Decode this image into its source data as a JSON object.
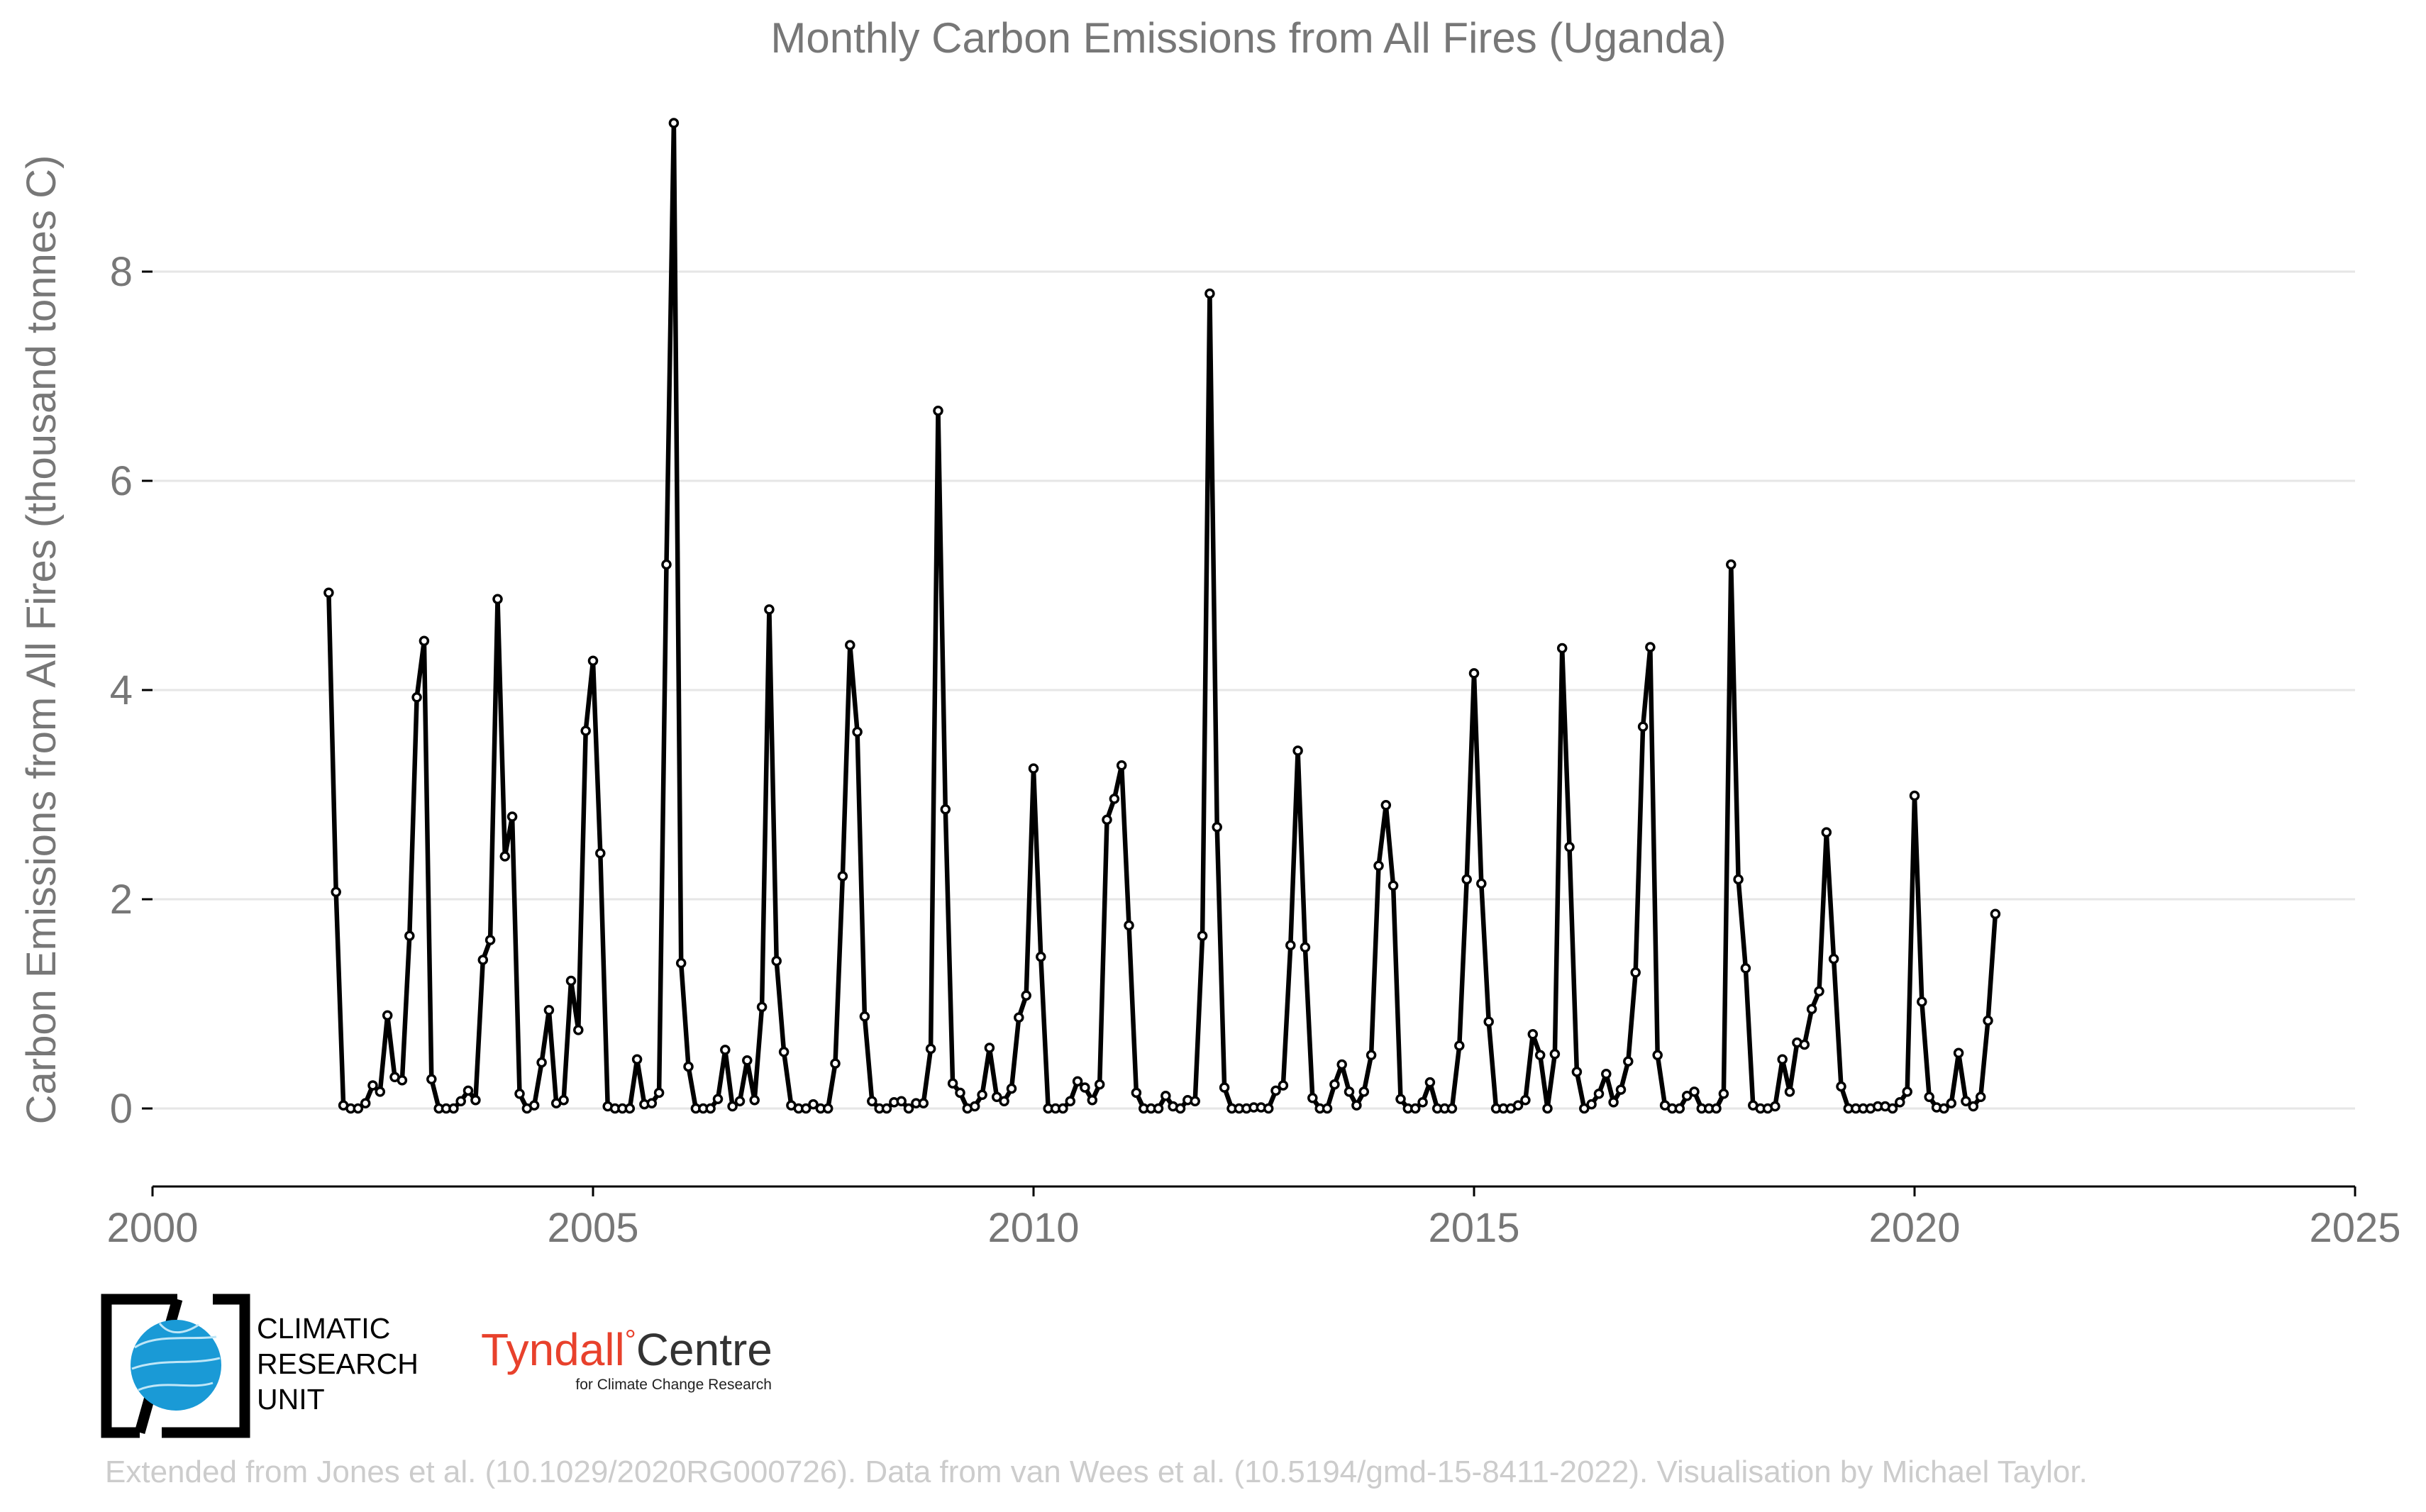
{
  "chart_data": {
    "type": "line",
    "title": "Monthly Carbon Emissions from All Fires (Uganda)",
    "xlabel": "",
    "ylabel": "Carbon Emissions from All Fires (thousand tonnes C)",
    "xlim": [
      2000,
      2025
    ],
    "ylim": [
      -0.75,
      9.7
    ],
    "x_ticks": [
      2000,
      2005,
      2010,
      2015,
      2020,
      2025
    ],
    "y_ticks": [
      0,
      2,
      4,
      6,
      8
    ],
    "grid": "horizontal",
    "legend": "none",
    "x_start": "2002-01",
    "x_step": "1 month",
    "series": [
      {
        "color": "#000000",
        "marker": "open-circle",
        "values": [
          4.93,
          2.07,
          0.03,
          0.0,
          0.0,
          0.05,
          0.22,
          0.16,
          0.89,
          0.3,
          0.27,
          1.65,
          3.93,
          4.47,
          0.28,
          0.0,
          0.0,
          0.0,
          0.07,
          0.17,
          0.08,
          1.42,
          1.61,
          4.87,
          2.41,
          2.79,
          0.14,
          0.0,
          0.03,
          0.44,
          0.94,
          0.05,
          0.08,
          1.22,
          0.75,
          3.61,
          4.28,
          2.44,
          0.02,
          0.0,
          0.0,
          0.0,
          0.47,
          0.04,
          0.05,
          0.15,
          5.2,
          9.42,
          1.39,
          0.4,
          0.0,
          0.0,
          0.0,
          0.09,
          0.56,
          0.02,
          0.07,
          0.46,
          0.08,
          0.97,
          4.77,
          1.41,
          0.54,
          0.03,
          0.0,
          0.0,
          0.04,
          0.0,
          0.0,
          0.43,
          2.22,
          4.43,
          3.6,
          0.88,
          0.07,
          0.0,
          0.0,
          0.06,
          0.07,
          0.0,
          0.05,
          0.05,
          0.57,
          6.67,
          2.86,
          0.24,
          0.15,
          0.0,
          0.02,
          0.13,
          0.58,
          0.11,
          0.07,
          0.19,
          0.87,
          1.08,
          3.25,
          1.45,
          0.0,
          0.0,
          0.0,
          0.07,
          0.26,
          0.2,
          0.08,
          0.23,
          2.76,
          2.96,
          3.28,
          1.75,
          0.15,
          0.0,
          0.0,
          0.0,
          0.12,
          0.02,
          0.0,
          0.08,
          0.07,
          1.65,
          7.79,
          2.69,
          0.2,
          0.0,
          0.0,
          0.0,
          0.01,
          0.01,
          0.0,
          0.17,
          0.22,
          1.56,
          3.42,
          1.54,
          0.1,
          0.0,
          0.0,
          0.23,
          0.42,
          0.16,
          0.03,
          0.16,
          0.51,
          2.32,
          2.9,
          2.13,
          0.09,
          0.0,
          0.0,
          0.06,
          0.25,
          0.0,
          0.0,
          0.0,
          0.6,
          2.19,
          4.16,
          2.15,
          0.83,
          0.0,
          0.0,
          0.0,
          0.03,
          0.08,
          0.71,
          0.51,
          0.0,
          0.52,
          4.4,
          2.5,
          0.35,
          0.0,
          0.04,
          0.14,
          0.33,
          0.06,
          0.18,
          0.45,
          1.3,
          3.65,
          4.41,
          0.51,
          0.03,
          0.0,
          0.0,
          0.12,
          0.16,
          0.0,
          0.0,
          0.0,
          0.14,
          5.2,
          2.19,
          1.34,
          0.03,
          0.0,
          0.0,
          0.02,
          0.47,
          0.16,
          0.63,
          0.61,
          0.95,
          1.12,
          2.64,
          1.43,
          0.21,
          0.0,
          0.0,
          0.0,
          0.0,
          0.02,
          0.02,
          0.0,
          0.06,
          0.16,
          2.99,
          1.02,
          0.11,
          0.01,
          0.0,
          0.05,
          0.53,
          0.07,
          0.02,
          0.11,
          0.84,
          1.86
        ]
      }
    ]
  },
  "logos": {
    "cru": {
      "lines": [
        "CLIMATIC",
        "RESEARCH",
        "UNIT"
      ]
    },
    "tyndall": {
      "name_part1": "Tyndall",
      "degree": "°",
      "name_part2": "Centre",
      "subtitle": "for Climate Change Research",
      "accent_color": "#e8412c"
    }
  },
  "credit": "Extended from Jones et al. (10.1029/2020RG000726). Data from van Wees et al. (10.5194/gmd-15-8411-2022). Visualisation by Michael Taylor."
}
